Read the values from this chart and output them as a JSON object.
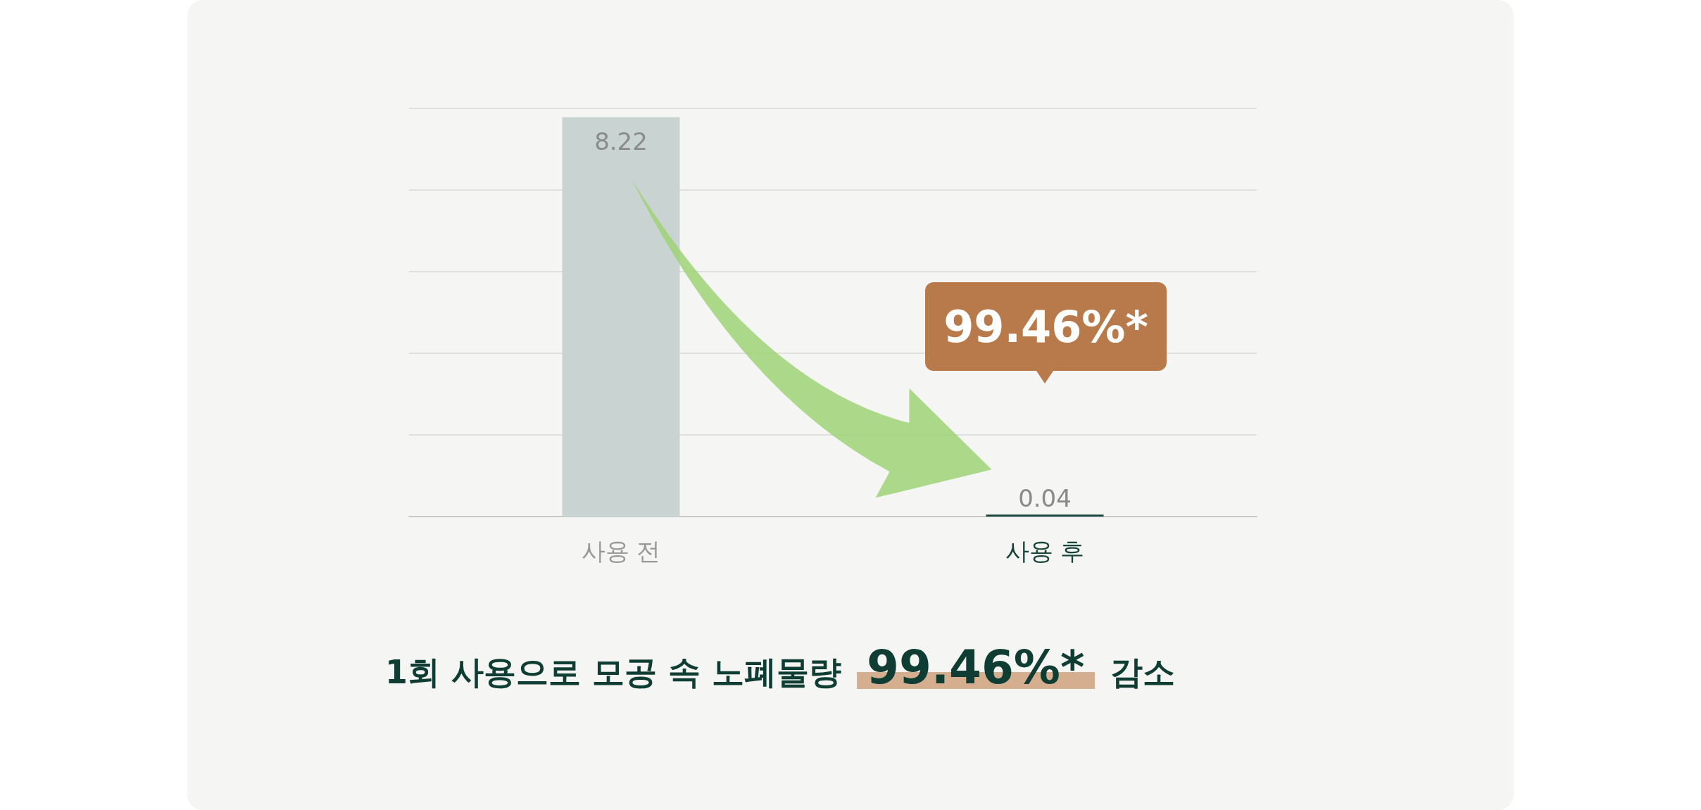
{
  "chart_data": {
    "type": "bar",
    "categories": [
      "사용 전",
      "사용 후"
    ],
    "values": [
      8.22,
      0.04
    ],
    "colors": [
      "#c8d3d2",
      "#17443a"
    ],
    "data_labels": true,
    "ylim": [
      0,
      8.4
    ],
    "yticks": [
      {
        "value": 0,
        "label": null
      },
      {
        "value": 1.68,
        "label": null
      },
      {
        "value": 3.36,
        "label": null
      },
      {
        "value": 5.04,
        "label": null
      },
      {
        "value": 6.72,
        "label": null
      },
      {
        "value": 8.4,
        "label": null
      }
    ],
    "grid": "y",
    "annotations": [
      "99.46%*",
      "1회 사용으로 모공 속 노폐물량 99.46%* 감소"
    ]
  }
}
